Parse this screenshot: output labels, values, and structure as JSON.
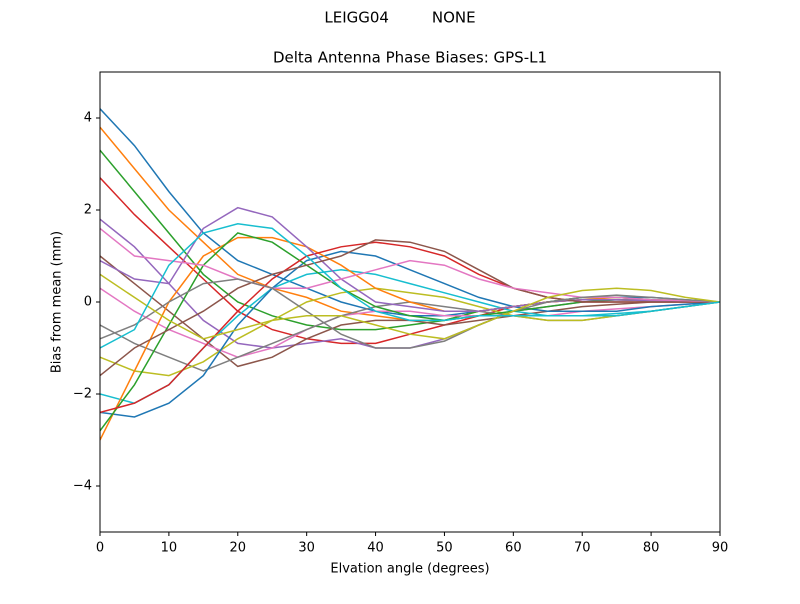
{
  "chart_data": {
    "type": "line",
    "suptitle": "LEIGG04         NONE",
    "title": "Delta Antenna Phase Biases: GPS-L1",
    "x_label": "Elvation angle (degrees)",
    "y_label": "Bias from mean (mm)",
    "grid": false,
    "x": [
      0,
      5,
      10,
      15,
      20,
      25,
      30,
      35,
      40,
      45,
      50,
      55,
      60,
      65,
      70,
      75,
      80,
      85,
      90
    ],
    "xlim": [
      0,
      90
    ],
    "xticks": [
      0,
      10,
      20,
      30,
      40,
      50,
      60,
      70,
      80,
      90
    ],
    "ylim": [
      -5,
      5
    ],
    "yticks": [
      {
        "value": -4,
        "label": "−4"
      },
      {
        "value": -2,
        "label": "−2"
      },
      0,
      2,
      4
    ],
    "series": [
      {
        "color": "#1f77b4",
        "values": [
          4.2,
          3.4,
          2.4,
          1.5,
          0.9,
          0.6,
          0.3,
          0.0,
          -0.2,
          -0.3,
          -0.3,
          -0.2,
          -0.1,
          0.0,
          0.1,
          0.1,
          0.1,
          0.05,
          0
        ]
      },
      {
        "color": "#ff7f0e",
        "values": [
          3.8,
          2.9,
          2.0,
          1.3,
          0.6,
          0.3,
          0.1,
          -0.2,
          -0.3,
          -0.4,
          -0.4,
          -0.2,
          -0.1,
          0.0,
          0.05,
          0.1,
          0.05,
          0.03,
          0
        ]
      },
      {
        "color": "#2ca02c",
        "values": [
          3.3,
          2.4,
          1.5,
          0.6,
          0.0,
          -0.3,
          -0.5,
          -0.6,
          -0.6,
          -0.5,
          -0.4,
          -0.2,
          -0.1,
          0.0,
          0.1,
          0.1,
          0.05,
          0.03,
          0
        ]
      },
      {
        "color": "#d62728",
        "values": [
          2.7,
          1.9,
          1.2,
          0.5,
          -0.2,
          -0.6,
          -0.8,
          -0.9,
          -0.9,
          -0.7,
          -0.5,
          -0.3,
          -0.1,
          0.0,
          0.05,
          0.05,
          0.03,
          0.02,
          0
        ]
      },
      {
        "color": "#9467bd",
        "values": [
          1.8,
          1.2,
          0.4,
          -0.4,
          -0.9,
          -1.0,
          -0.9,
          -0.8,
          -1.0,
          -1.0,
          -0.8,
          -0.5,
          -0.2,
          -0.1,
          0.0,
          0.05,
          0.03,
          0.02,
          0
        ]
      },
      {
        "color": "#8c564b",
        "values": [
          1.0,
          0.4,
          -0.2,
          -0.8,
          -1.4,
          -1.2,
          -0.8,
          -0.5,
          -0.4,
          -0.4,
          -0.5,
          -0.4,
          -0.3,
          -0.2,
          -0.1,
          -0.05,
          0,
          0,
          0
        ]
      },
      {
        "color": "#e377c2",
        "values": [
          0.3,
          -0.2,
          -0.6,
          -0.9,
          -1.2,
          -1.0,
          -0.6,
          -0.3,
          -0.2,
          -0.2,
          -0.3,
          -0.3,
          -0.3,
          -0.3,
          -0.2,
          -0.15,
          -0.1,
          -0.05,
          0
        ]
      },
      {
        "color": "#7f7f7f",
        "values": [
          -0.5,
          -0.9,
          -1.2,
          -1.5,
          -1.2,
          -0.9,
          -0.6,
          -0.3,
          -0.1,
          0.0,
          -0.1,
          -0.2,
          -0.3,
          -0.4,
          -0.4,
          -0.3,
          -0.2,
          -0.1,
          0
        ]
      },
      {
        "color": "#bcbd22",
        "values": [
          -1.2,
          -1.5,
          -1.6,
          -1.3,
          -0.8,
          -0.4,
          0.0,
          0.2,
          0.3,
          0.2,
          0.1,
          -0.1,
          -0.3,
          -0.4,
          -0.4,
          -0.3,
          -0.2,
          -0.1,
          0
        ]
      },
      {
        "color": "#17becf",
        "values": [
          -2.0,
          -2.2,
          -1.8,
          -1.0,
          -0.3,
          0.3,
          0.6,
          0.7,
          0.6,
          0.4,
          0.2,
          0.0,
          -0.2,
          -0.3,
          -0.3,
          -0.3,
          -0.2,
          -0.1,
          0
        ]
      },
      {
        "color": "#1f77b4",
        "values": [
          -2.4,
          -2.5,
          -2.2,
          -1.6,
          -0.5,
          0.3,
          0.9,
          1.1,
          1.0,
          0.7,
          0.4,
          0.1,
          -0.1,
          -0.2,
          -0.2,
          -0.2,
          -0.1,
          -0.05,
          0
        ]
      },
      {
        "color": "#ff7f0e",
        "values": [
          -3.0,
          -1.5,
          0.0,
          1.0,
          1.4,
          1.4,
          1.2,
          0.8,
          0.3,
          0.0,
          -0.2,
          -0.2,
          -0.1,
          0.0,
          0.05,
          0.05,
          0.03,
          0.02,
          0
        ]
      },
      {
        "color": "#2ca02c",
        "values": [
          -2.8,
          -1.8,
          -0.5,
          0.8,
          1.5,
          1.3,
          0.8,
          0.3,
          -0.1,
          -0.3,
          -0.4,
          -0.3,
          -0.2,
          -0.1,
          0.0,
          0.05,
          0.03,
          0.02,
          0
        ]
      },
      {
        "color": "#d62728",
        "values": [
          -2.4,
          -2.2,
          -1.8,
          -1.0,
          -0.2,
          0.5,
          1.0,
          1.2,
          1.3,
          1.2,
          1.0,
          0.6,
          0.3,
          0.1,
          0.0,
          0.0,
          0.0,
          0.0,
          0
        ]
      },
      {
        "color": "#9467bd",
        "values": [
          0.9,
          0.5,
          0.4,
          1.6,
          2.05,
          1.85,
          1.2,
          0.5,
          0.0,
          -0.1,
          -0.2,
          -0.2,
          -0.1,
          0.0,
          0.05,
          0.05,
          0.03,
          0.02,
          0
        ]
      },
      {
        "color": "#8c564b",
        "values": [
          -1.6,
          -1.0,
          -0.6,
          -0.2,
          0.3,
          0.6,
          0.8,
          1.0,
          1.35,
          1.3,
          1.1,
          0.7,
          0.3,
          0.1,
          0.0,
          0.0,
          0.0,
          0.0,
          0
        ]
      },
      {
        "color": "#e377c2",
        "values": [
          1.6,
          1.0,
          0.9,
          0.8,
          0.5,
          0.3,
          0.3,
          0.5,
          0.7,
          0.9,
          0.8,
          0.5,
          0.3,
          0.2,
          0.1,
          0.1,
          0.05,
          0.03,
          0
        ]
      },
      {
        "color": "#7f7f7f",
        "values": [
          -0.8,
          -0.5,
          0.0,
          0.4,
          0.5,
          0.3,
          -0.2,
          -0.7,
          -1.0,
          -1.0,
          -0.85,
          -0.5,
          -0.2,
          0.0,
          0.1,
          0.15,
          0.1,
          0.05,
          0
        ]
      },
      {
        "color": "#bcbd22",
        "values": [
          0.6,
          0.1,
          -0.4,
          -0.8,
          -0.6,
          -0.4,
          -0.3,
          -0.3,
          -0.5,
          -0.7,
          -0.8,
          -0.5,
          -0.2,
          0.1,
          0.25,
          0.3,
          0.25,
          0.1,
          0
        ]
      },
      {
        "color": "#17becf",
        "values": [
          -1.0,
          -0.6,
          0.8,
          1.5,
          1.7,
          1.6,
          1.0,
          0.3,
          -0.2,
          -0.4,
          -0.4,
          -0.3,
          -0.3,
          -0.3,
          -0.3,
          -0.25,
          -0.2,
          -0.1,
          0
        ]
      }
    ]
  }
}
